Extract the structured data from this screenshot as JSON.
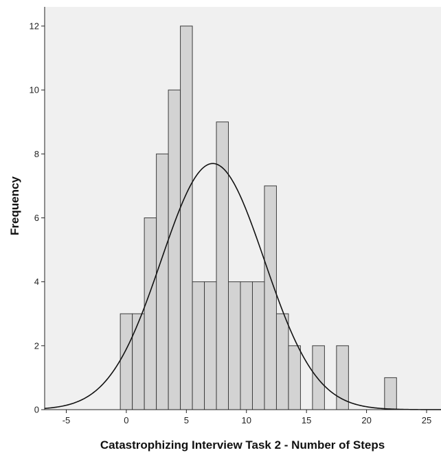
{
  "chart_data": {
    "type": "bar",
    "subtype": "histogram",
    "title": "",
    "xlabel": "Catastrophizing Interview Task 2 - Number of Steps",
    "ylabel": "Frequency",
    "xlim": [
      -6.8,
      26.2
    ],
    "ylim": [
      0,
      12.6
    ],
    "xticks": [
      -5,
      0,
      5,
      10,
      15,
      20,
      25
    ],
    "yticks": [
      0,
      2,
      4,
      6,
      8,
      10,
      12
    ],
    "bin_width": 1,
    "bins": [
      {
        "x": 0,
        "count": 3
      },
      {
        "x": 1,
        "count": 3
      },
      {
        "x": 2,
        "count": 6
      },
      {
        "x": 3,
        "count": 8
      },
      {
        "x": 4,
        "count": 10
      },
      {
        "x": 5,
        "count": 12
      },
      {
        "x": 6,
        "count": 4
      },
      {
        "x": 7,
        "count": 4
      },
      {
        "x": 8,
        "count": 9
      },
      {
        "x": 9,
        "count": 4
      },
      {
        "x": 10,
        "count": 4
      },
      {
        "x": 11,
        "count": 4
      },
      {
        "x": 12,
        "count": 7
      },
      {
        "x": 13,
        "count": 3
      },
      {
        "x": 14,
        "count": 2
      },
      {
        "x": 16,
        "count": 2
      },
      {
        "x": 18,
        "count": 2
      },
      {
        "x": 22,
        "count": 1
      }
    ],
    "normal_curve": {
      "mean": 7.2,
      "sd": 4.3,
      "peak": 7.7
    },
    "grid": false,
    "legend": "none",
    "colors": {
      "plot_background": "#f0f0f0",
      "bar_fill": "#d3d3d3",
      "bar_stroke": "#3c3c3c",
      "curve": "#111111"
    }
  }
}
